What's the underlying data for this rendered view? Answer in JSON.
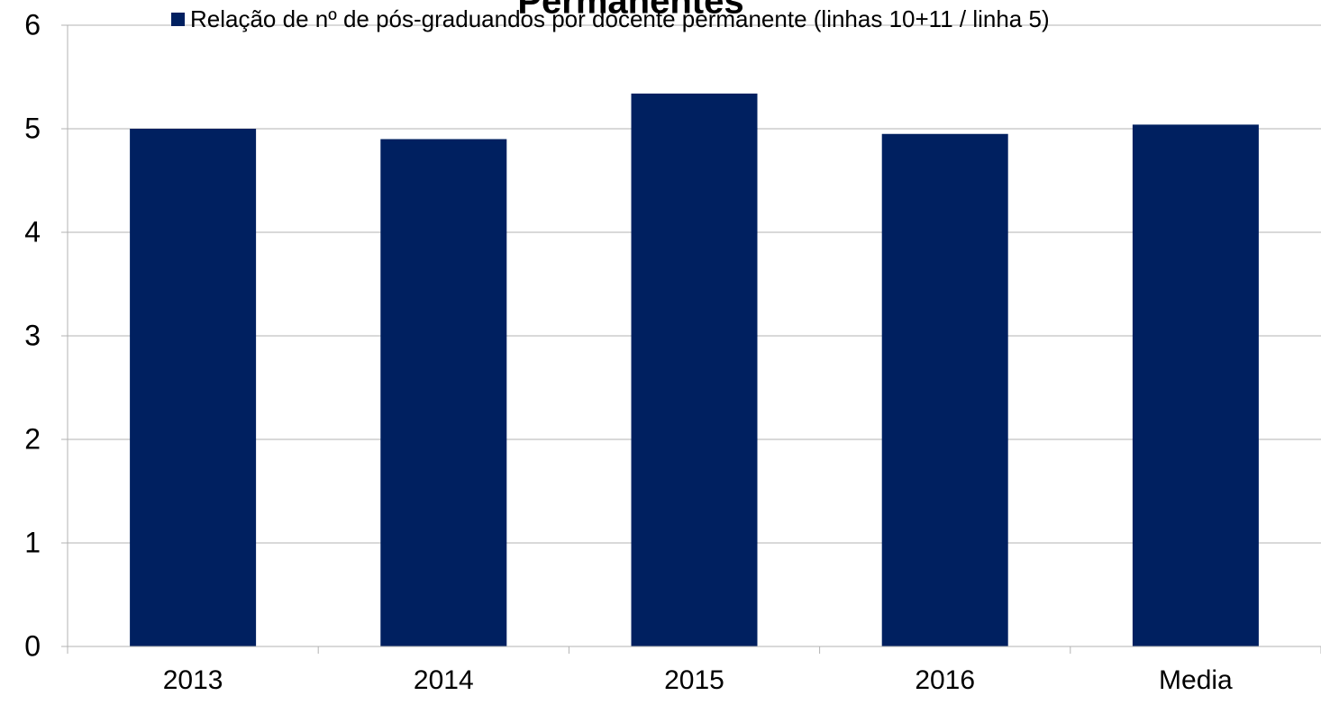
{
  "chart_data": {
    "type": "bar",
    "title": "Permanentes",
    "categories": [
      "2013",
      "2014",
      "2015",
      "2016",
      "Media"
    ],
    "series": [
      {
        "name": "Relação de nº de pós-graduandos por docente permanente (linhas 10+11 / linha 5)",
        "color": "#002060",
        "values": [
          5.0,
          4.9,
          5.34,
          4.95,
          5.04
        ]
      }
    ],
    "ylim": [
      0,
      6
    ],
    "yticks": [
      0,
      1,
      2,
      3,
      4,
      5,
      6
    ],
    "grid": true,
    "legend": "top"
  }
}
